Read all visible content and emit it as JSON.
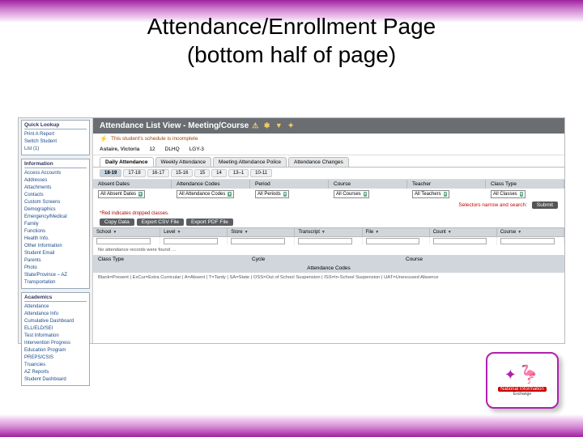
{
  "slide": {
    "title_line1": "Attendance/Enrollment Page",
    "title_line2": "(bottom half of page)"
  },
  "colors": {
    "accent_purple": "#a020a0",
    "header_gray": "#6a6e73",
    "panel_gray": "#d0d6dc",
    "link_blue": "#1a4a8a",
    "alert_red": "#c00"
  },
  "sidebar": {
    "quick": {
      "head": "Quick Lookup",
      "lines": [
        "Print A Report",
        "Switch Student",
        "List (1)"
      ]
    },
    "info": {
      "head": "Information",
      "links": [
        "Access Accounts",
        "Addresses",
        "Attachments",
        "Contacts",
        "Custom Screens",
        "Demographics",
        "Emergency/Medical",
        "Family",
        "Functions",
        "Health Info.",
        "Other Information",
        "Student Email",
        "Parents",
        "Photo",
        "State/Province – AZ",
        "Transportation"
      ]
    },
    "acad": {
      "head": "Academics",
      "links": [
        "Attendance",
        "Attendance Info",
        "Cumulative Dashboard",
        "ELL/ELD/SEI",
        "Test Information",
        "Intervention Progress",
        "Education Program",
        "PREPS/CSIS",
        "Truancies",
        "AZ Reports",
        "Student Dashboard"
      ]
    }
  },
  "main": {
    "title": "Attendance List View - Meeting/Course",
    "icons": "⚠ ✱ ▼ ✦",
    "alert": "This student's schedule is incomplete"
  },
  "crumb": {
    "name": "Astaire, Victoria",
    "grade_label": "12",
    "school_label": "DLHQ",
    "id_label": "LGY-3"
  },
  "tabs": {
    "items": [
      "Daily Attendance",
      "Weekly Attendance",
      "Meeting Attendance Police",
      "Attendance Changes"
    ],
    "active_index": 0
  },
  "subtabs": {
    "items": [
      "18-19",
      "17-18",
      "16-17",
      "15-16",
      "15",
      "14",
      "13–1",
      "10-11"
    ],
    "active_index": 0
  },
  "filters": {
    "headers": [
      "Absent Dates",
      "Attendance Codes",
      "Period",
      "Course",
      "Teacher",
      "Class Type"
    ],
    "values": [
      "All Absent Dates",
      "All Attendance Codes",
      "All Periods",
      "All Courses",
      "All Teachers",
      "All Classes"
    ]
  },
  "submit": {
    "note": "Selectors narrow and search:",
    "button": "Submit"
  },
  "red_note": "*Red indicates dropped classes.",
  "buttons": {
    "copy": "Copy Data",
    "csv": "Export CSV File",
    "pdf": "Export PDF File"
  },
  "table": {
    "cols": [
      "School",
      "Level",
      "Store",
      "Transcript",
      "File",
      "Count",
      "Course"
    ],
    "class_type": "Class Type",
    "cycle": "Cycle",
    "course_hdr": "Course"
  },
  "no_records": "No attendance records were found …",
  "att_header": "Attendance Codes",
  "legend": "Blank=Present | ExCur=Extra Curricular | A=Absent | T=Tardy | SA=State | OSS=Out of School Suspension | ISS=In-School Suspension | UAT=Unexcused Absence",
  "badge": {
    "line1": "National Information",
    "line2": "Exchange"
  }
}
